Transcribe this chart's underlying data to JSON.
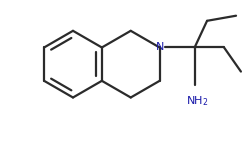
{
  "background": "#ffffff",
  "line_color": "#2b2b2b",
  "n_color": "#1a1aaa",
  "nh2_color": "#1a1aaa",
  "line_width": 1.6,
  "font_size_N": 8,
  "font_size_NH2": 8
}
